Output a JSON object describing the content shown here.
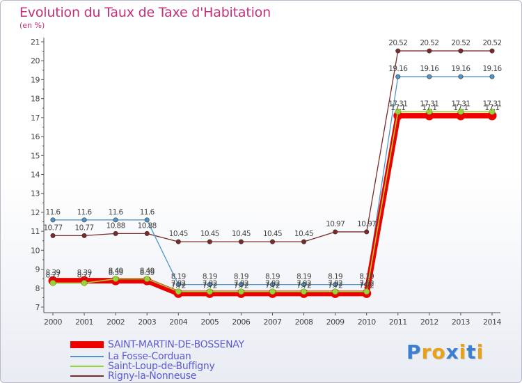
{
  "header": {
    "title": "Evolution du Taux de Taxe d'Habitation",
    "unit": "(en %)"
  },
  "chart_data": {
    "type": "line",
    "title": "Evolution du Taux de Taxe d'Habitation",
    "ylabel": "(en %)",
    "xlabel": "",
    "x": [
      "2000",
      "2001",
      "2002",
      "2003",
      "2004",
      "2005",
      "2006",
      "2007",
      "2008",
      "2009",
      "2010",
      "2011",
      "2012",
      "2013",
      "2014"
    ],
    "ylim": [
      7,
      21
    ],
    "yticks": [
      "7",
      "8",
      "9",
      "10",
      "11",
      "12",
      "13",
      "14",
      "15",
      "16",
      "17",
      "18",
      "19",
      "20",
      "21"
    ],
    "grid": false,
    "legend_position": "bottom-left",
    "series": [
      {
        "name": "SAINT-MARTIN-DE-BOSSENAY",
        "color": "#ee0000",
        "values": [
          8.39,
          8.39,
          8.39,
          8.39,
          7.72,
          7.72,
          7.72,
          7.72,
          7.72,
          7.72,
          7.72,
          17.1,
          17.1,
          17.1,
          17.1
        ],
        "labels": [
          "8.39",
          "8.39",
          "8.39",
          "8.39",
          "7.72",
          "7.72",
          "7.72",
          "7.72",
          "7.72",
          "7.72",
          "7.72",
          "17.1",
          "17.1",
          "17.1",
          "17.1"
        ]
      },
      {
        "name": "La Fosse-Corduan",
        "color": "#4f95c9",
        "values": [
          11.6,
          11.6,
          11.6,
          11.6,
          8.19,
          8.19,
          8.19,
          8.19,
          8.19,
          8.19,
          8.19,
          19.16,
          19.16,
          19.16,
          19.16
        ],
        "labels": [
          "11.6",
          "11.6",
          "11.6",
          "11.6",
          "8.19",
          "8.19",
          "8.19",
          "8.19",
          "8.19",
          "8.19",
          "8.19",
          "19.16",
          "19.16",
          "19.16",
          "19.16"
        ]
      },
      {
        "name": "Saint-Loup-de-Buffigny",
        "color": "#9ad23a",
        "values": [
          8.27,
          8.27,
          8.49,
          8.49,
          7.82,
          7.82,
          7.82,
          7.82,
          7.82,
          7.82,
          7.82,
          17.31,
          17.31,
          17.31,
          17.31
        ],
        "labels": [
          "8.27",
          "8.27",
          "8.49",
          "8.49",
          "7.82",
          "7.82",
          "7.82",
          "7.82",
          "7.82",
          "7.82",
          "7.82",
          "17.31",
          "17.31",
          "17.31",
          "17.31"
        ]
      },
      {
        "name": "Rigny-la-Nonneuse",
        "color": "#7a2a2a",
        "values": [
          10.77,
          10.77,
          10.88,
          10.88,
          10.45,
          10.45,
          10.45,
          10.45,
          10.45,
          10.97,
          10.97,
          20.52,
          20.52,
          20.52,
          20.52
        ],
        "labels": [
          "10.77",
          "10.77",
          "10.88",
          "10.88",
          "10.45",
          "10.45",
          "10.45",
          "10.45",
          "10.45",
          "10.97",
          "10.97",
          "20.52",
          "20.52",
          "20.52",
          "20.52"
        ]
      }
    ]
  },
  "legend": {
    "items": [
      {
        "label": "SAINT-MARTIN-DE-BOSSENAY",
        "color": "#ee0000"
      },
      {
        "label": "La Fosse-Corduan",
        "color": "#4f95c9"
      },
      {
        "label": "Saint-Loup-de-Buffigny",
        "color": "#9ad23a"
      },
      {
        "label": "Rigny-la-Nonneuse",
        "color": "#7a2a2a"
      }
    ]
  },
  "logo": {
    "letters": [
      "P",
      "r",
      "o",
      "x",
      "i",
      "t",
      "i"
    ],
    "colors": [
      "#3a7fd0",
      "#e8a21a",
      "#e8a21a",
      "#3a7fd0",
      "#e8a21a",
      "#3a7fd0",
      "#e8a21a"
    ]
  }
}
